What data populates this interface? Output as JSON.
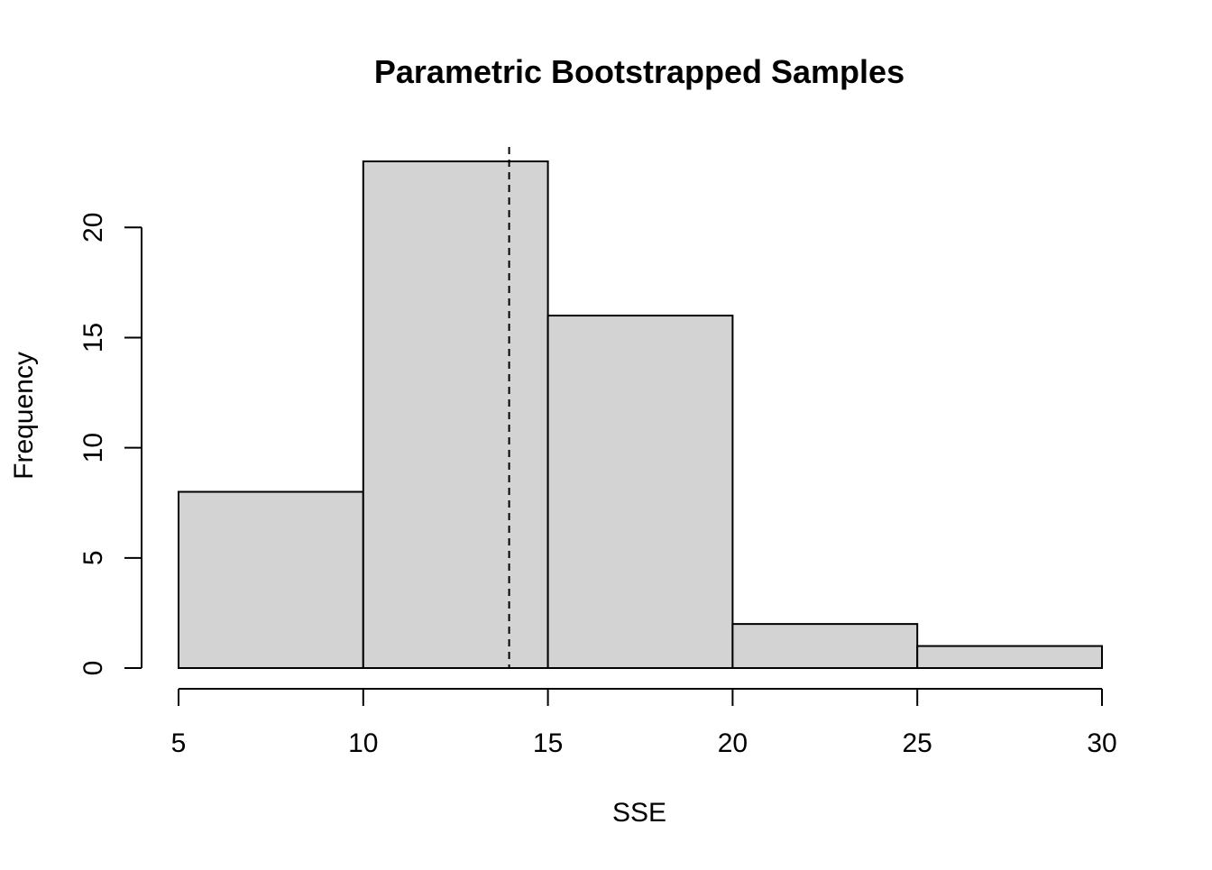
{
  "chart_data": {
    "type": "bar",
    "subtype": "histogram",
    "title": "Parametric Bootstrapped Samples",
    "xlabel": "SSE",
    "ylabel": "Frequency",
    "bins": [
      {
        "from": 5,
        "to": 10,
        "count": 8
      },
      {
        "from": 10,
        "to": 15,
        "count": 23
      },
      {
        "from": 15,
        "to": 20,
        "count": 16
      },
      {
        "from": 20,
        "to": 25,
        "count": 2
      },
      {
        "from": 25,
        "to": 30,
        "count": 1
      }
    ],
    "x_ticks": [
      5,
      10,
      15,
      20,
      25,
      30
    ],
    "y_ticks": [
      0,
      5,
      10,
      15,
      20
    ],
    "xlim": [
      5,
      30
    ],
    "ylim": [
      0,
      23
    ],
    "reference_line": {
      "x": 13.95,
      "style": "dashed"
    },
    "bar_fill": "#d3d3d3",
    "bar_stroke": "#000000",
    "grid": false
  }
}
